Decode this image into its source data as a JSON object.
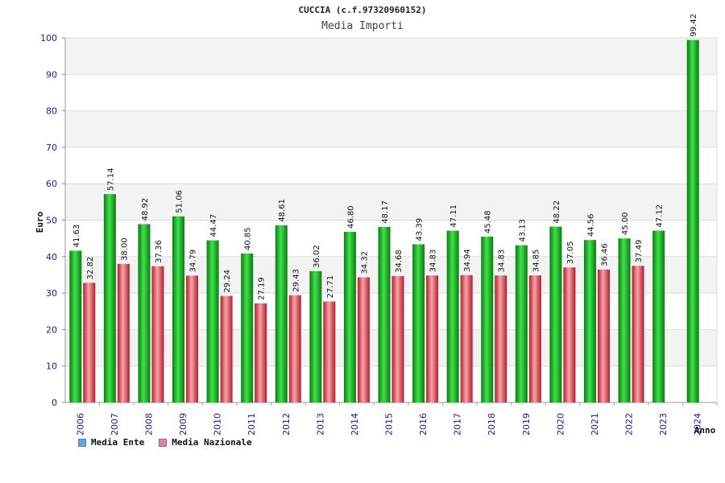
{
  "colors": {
    "ente": "#1fbf2a",
    "ente_dark": "#0b7a12",
    "nazionale": "#e84a57",
    "nazionale_dark": "#b31d2a",
    "legend_ente": "#5aa8ea",
    "legend_nazionale": "#e57bb0",
    "axis_text": "#1a1a9c"
  },
  "chart_data": {
    "type": "bar",
    "title": "CUCCIA (c.f.97320960152)",
    "subtitle": "Media Importi",
    "ylabel": "Euro",
    "xlabel": "Anno",
    "ylim": [
      0,
      100
    ],
    "yticks": [
      0,
      10,
      20,
      30,
      40,
      50,
      60,
      70,
      80,
      90,
      100
    ],
    "categories": [
      "2006",
      "2007",
      "2008",
      "2009",
      "2010",
      "2011",
      "2012",
      "2013",
      "2014",
      "2015",
      "2016",
      "2017",
      "2018",
      "2019",
      "2020",
      "2021",
      "2022",
      "2023",
      "2024"
    ],
    "series": [
      {
        "name": "Media Ente",
        "values": [
          41.63,
          57.14,
          48.92,
          51.06,
          44.47,
          40.85,
          48.61,
          36.02,
          46.8,
          48.17,
          43.39,
          47.11,
          45.48,
          43.13,
          48.22,
          44.56,
          45.0,
          47.12,
          99.42
        ],
        "labels": [
          "41.63",
          "57.14",
          "48.92",
          "51.06",
          "44.47",
          "40.85",
          "48.61",
          "36.02",
          "46.80",
          "48.17",
          "43.39",
          "47.11",
          "45.48",
          "43.13",
          "48.22",
          "44.56",
          "45.00",
          "47.12",
          "99.42"
        ]
      },
      {
        "name": "Media Nazionale",
        "values": [
          32.82,
          38.0,
          37.36,
          34.79,
          29.24,
          27.19,
          29.43,
          27.71,
          34.32,
          34.68,
          34.83,
          34.94,
          34.83,
          34.85,
          37.05,
          36.46,
          37.49,
          null,
          null
        ],
        "labels": [
          "32.82",
          "38.00",
          "37.36",
          "34.79",
          "29.24",
          "27.19",
          "29.43",
          "27.71",
          "34.32",
          "34.68",
          "34.83",
          "34.94",
          "34.83",
          "34.85",
          "37.05",
          "36.46",
          "37.49",
          null,
          null
        ]
      }
    ]
  }
}
